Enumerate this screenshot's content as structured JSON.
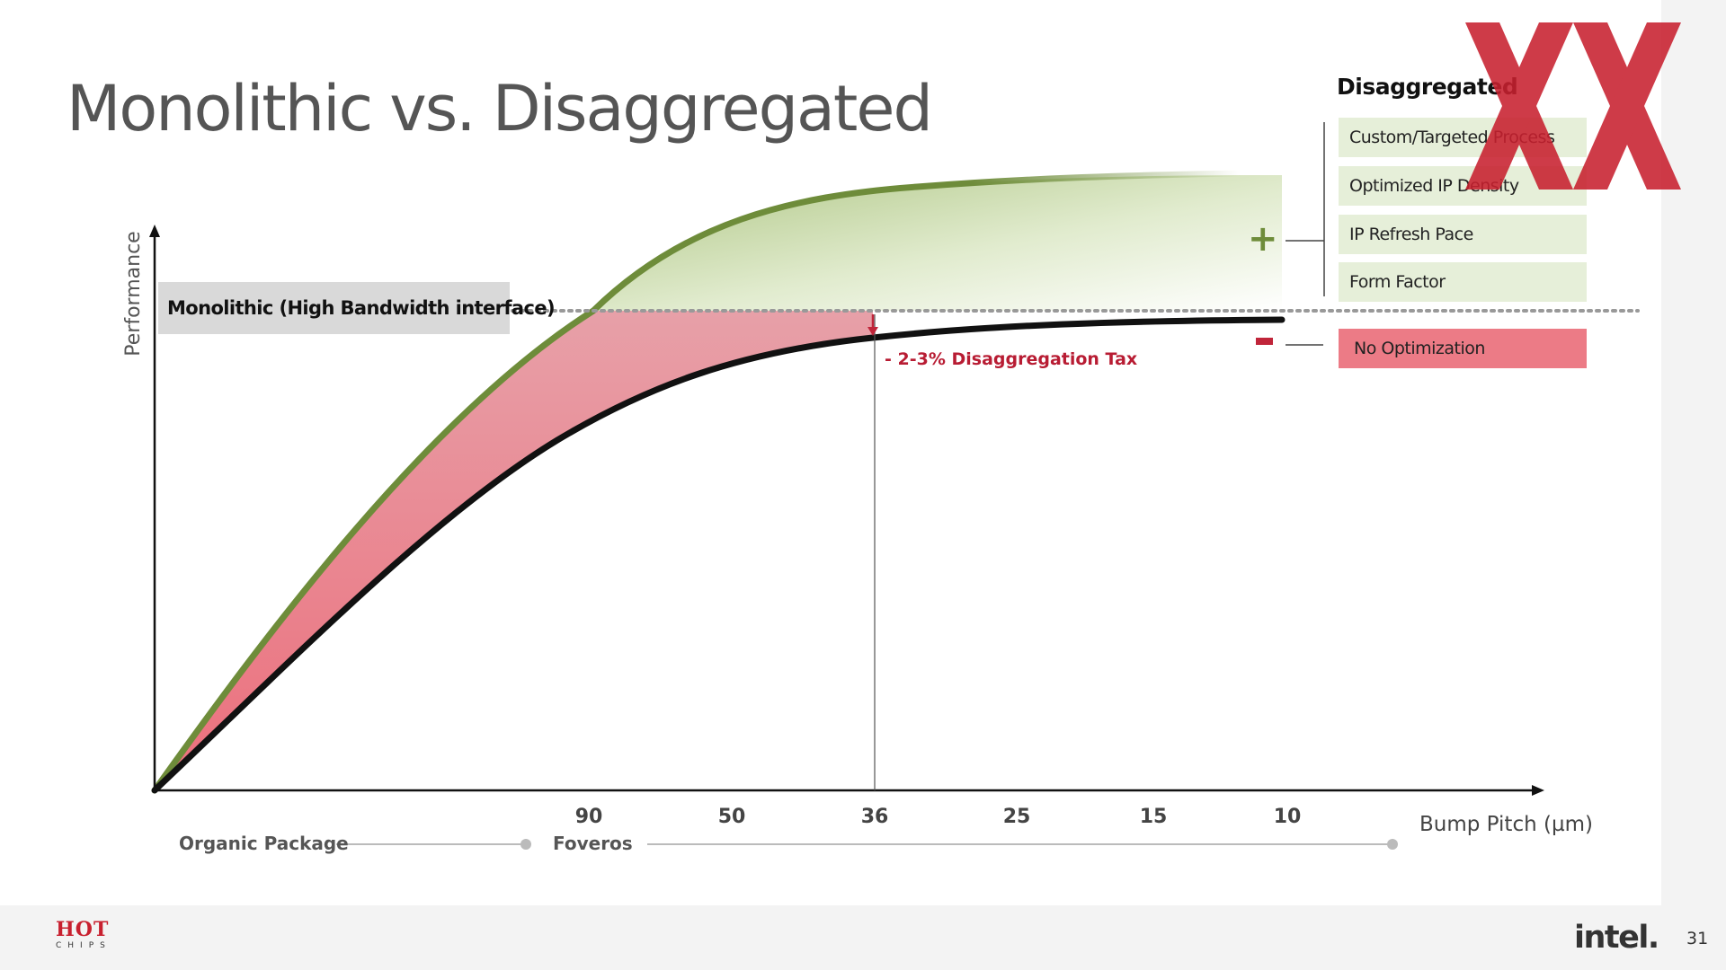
{
  "slide": {
    "title": "Monolithic vs. Disaggregated",
    "page_number": "31"
  },
  "diagram": {
    "y_axis_label": "Performance",
    "x_axis_label": "Bump Pitch (µm)",
    "x_ticks": [
      "90",
      "50",
      "36",
      "25",
      "15",
      "10"
    ],
    "monolithic_label": "Monolithic (High Bandwidth interface)",
    "tax_label": "- 2-3% Disaggregation  Tax",
    "packaging": {
      "organic": "Organic Package",
      "foveros": "Foveros"
    },
    "plus_symbol": "+",
    "colors": {
      "green_curve": "#6e8c3a",
      "red_fill": "#e8808b",
      "black_curve": "#111111",
      "tax_text": "#b81c33"
    }
  },
  "legend": {
    "title": "Disaggregated",
    "benefits": [
      "Custom/Targeted Process",
      "Optimized IP Density",
      "IP Refresh Pace",
      "Form Factor"
    ],
    "penalty": "No Optimization"
  },
  "footer": {
    "conference_logo_top": "HOT",
    "conference_logo_bottom": "CHIPS",
    "brand_logo": "intel."
  }
}
